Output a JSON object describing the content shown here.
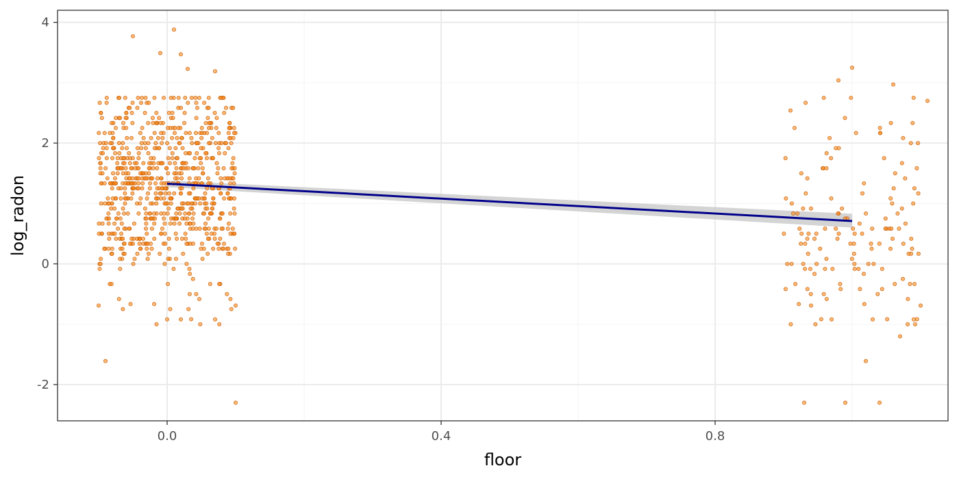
{
  "chart_data": {
    "type": "scatter",
    "title": "",
    "xlabel": "floor",
    "ylabel": "log_radon",
    "xlim": [
      -0.16,
      1.14
    ],
    "ylim": [
      -2.6,
      4.2
    ],
    "x_ticks": [
      0.0,
      0.4,
      0.8
    ],
    "x_tick_labels": [
      "0.0",
      "0.4",
      "0.8"
    ],
    "y_ticks": [
      -2,
      0,
      2,
      4
    ],
    "y_tick_labels": [
      "-2",
      "0",
      "2",
      "4"
    ],
    "grid": true,
    "legend": "none",
    "colors": {
      "point_fill": "#ff8c1a",
      "point_stroke": "#c45a00",
      "fit_line": "#00008b",
      "confidence_band": "#cccccc"
    },
    "jitter_width": 0.1,
    "groups": [
      {
        "x": 0,
        "count": 766,
        "y_center": 1.32,
        "y_sd": 0.78,
        "y_min": -2.3,
        "y_max": 3.88
      },
      {
        "x": 1,
        "count": 153,
        "y_center": 0.72,
        "y_sd": 0.9,
        "y_min": -2.3,
        "y_max": 3.25
      }
    ],
    "highlighted_points": [
      {
        "x": 0.01,
        "y": 3.88
      },
      {
        "x": -0.05,
        "y": 3.77
      },
      {
        "x": -0.01,
        "y": 3.49
      },
      {
        "x": 0.02,
        "y": 3.47
      },
      {
        "x": 0.03,
        "y": 3.23
      },
      {
        "x": 0.07,
        "y": 3.19
      },
      {
        "x": -0.09,
        "y": -1.61
      },
      {
        "x": 0.1,
        "y": -2.3
      },
      {
        "x": 0.0,
        "y": -0.92
      },
      {
        "x": 0.02,
        "y": -0.92
      },
      {
        "x": 0.07,
        "y": -0.92
      },
      {
        "x": -0.1,
        "y": -0.69
      },
      {
        "x": 0.1,
        "y": -0.69
      },
      {
        "x": 1.0,
        "y": 3.25
      },
      {
        "x": 0.98,
        "y": 3.04
      },
      {
        "x": 1.06,
        "y": 2.97
      },
      {
        "x": 1.11,
        "y": 2.7
      },
      {
        "x": 0.91,
        "y": 2.54
      },
      {
        "x": 0.93,
        "y": -2.3
      },
      {
        "x": 0.99,
        "y": -2.3
      },
      {
        "x": 1.04,
        "y": -2.3
      },
      {
        "x": 1.02,
        "y": -1.61
      },
      {
        "x": 1.07,
        "y": -1.2
      },
      {
        "x": 0.97,
        "y": -0.92
      },
      {
        "x": 1.09,
        "y": -0.92
      },
      {
        "x": 1.03,
        "y": -0.92
      },
      {
        "x": 1.1,
        "y": -0.69
      },
      {
        "x": 0.94,
        "y": -0.69
      }
    ],
    "fit": {
      "method": "linear",
      "x": [
        0,
        1
      ],
      "y": [
        1.327,
        0.71
      ],
      "se_low": [
        1.27,
        0.6
      ],
      "se_high": [
        1.38,
        0.83
      ]
    }
  }
}
